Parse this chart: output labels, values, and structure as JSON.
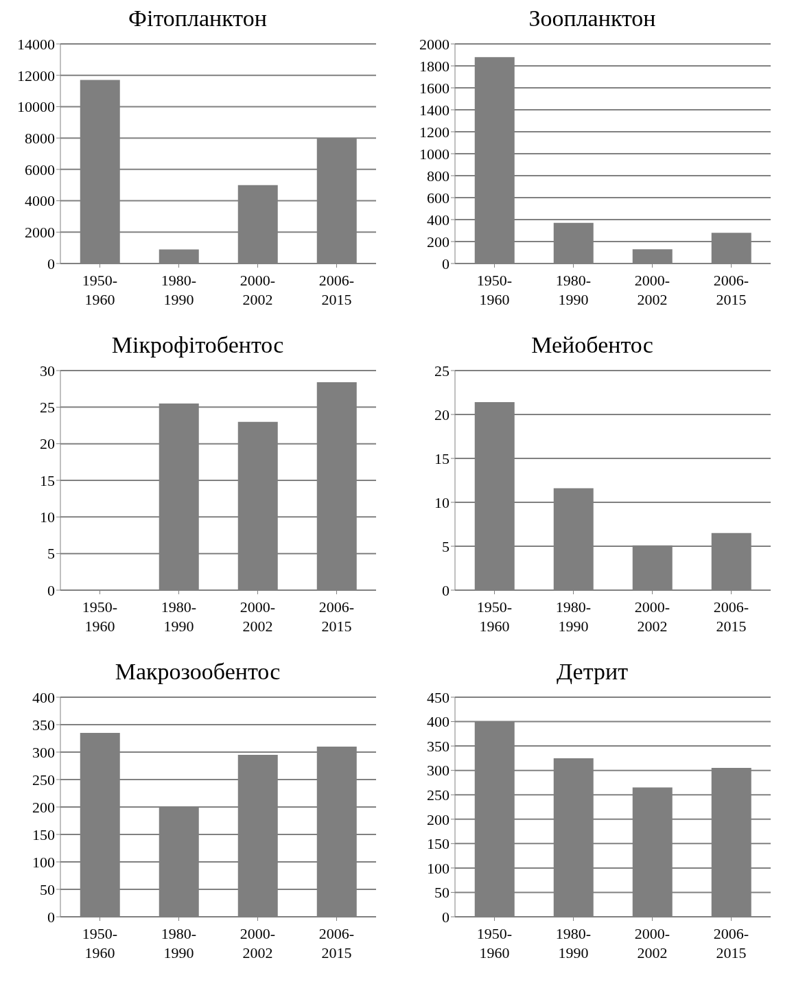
{
  "chart_data": [
    {
      "type": "bar",
      "title": "Фітопланктон",
      "categories": [
        "1950-1960",
        "1980-1990",
        "2000-2002",
        "2006-2015"
      ],
      "values": [
        11700,
        900,
        5000,
        8000
      ],
      "color": "#7f7f7f",
      "ylim": [
        0,
        14000
      ],
      "yticks": [
        0,
        2000,
        4000,
        6000,
        8000,
        10000,
        12000,
        14000
      ],
      "grid": "y"
    },
    {
      "type": "bar",
      "title": "Зоопланктон",
      "categories": [
        "1950-1960",
        "1980-1990",
        "2000-2002",
        "2006-2015"
      ],
      "values": [
        1880,
        370,
        130,
        280
      ],
      "color": "#7f7f7f",
      "ylim": [
        0,
        2000
      ],
      "yticks": [
        0,
        200,
        400,
        600,
        800,
        1000,
        1200,
        1400,
        1600,
        1800,
        2000
      ],
      "grid": "y"
    },
    {
      "type": "bar",
      "title": "Мікрофітобентос",
      "categories": [
        "1950-1960",
        "1980-1990",
        "2000-2002",
        "2006-2015"
      ],
      "values": [
        null,
        25.5,
        23,
        28.4
      ],
      "color": "#7f7f7f",
      "ylim": [
        0,
        30
      ],
      "yticks": [
        0,
        5,
        10,
        15,
        20,
        25,
        30
      ],
      "grid": "y"
    },
    {
      "type": "bar",
      "title": "Мейобентос",
      "categories": [
        "1950-1960",
        "1980-1990",
        "2000-2002",
        "2006-2015"
      ],
      "values": [
        21.4,
        11.6,
        5.1,
        6.5
      ],
      "color": "#7f7f7f",
      "ylim": [
        0,
        25
      ],
      "yticks": [
        0,
        5,
        10,
        15,
        20,
        25
      ],
      "grid": "y"
    },
    {
      "type": "bar",
      "title": "Макрозообентос",
      "categories": [
        "1950-1960",
        "1980-1990",
        "2000-2002",
        "2006-2015"
      ],
      "values": [
        335,
        200,
        295,
        310
      ],
      "color": "#7f7f7f",
      "ylim": [
        0,
        400
      ],
      "yticks": [
        0,
        50,
        100,
        150,
        200,
        250,
        300,
        350,
        400
      ],
      "grid": "y"
    },
    {
      "type": "bar",
      "title": "Детрит",
      "categories": [
        "1950-1960",
        "1980-1990",
        "2000-2002",
        "2006-2015"
      ],
      "values": [
        400,
        325,
        265,
        305
      ],
      "color": "#7f7f7f",
      "ylim": [
        0,
        450
      ],
      "yticks": [
        0,
        50,
        100,
        150,
        200,
        250,
        300,
        350,
        400,
        450
      ],
      "grid": "y"
    }
  ]
}
